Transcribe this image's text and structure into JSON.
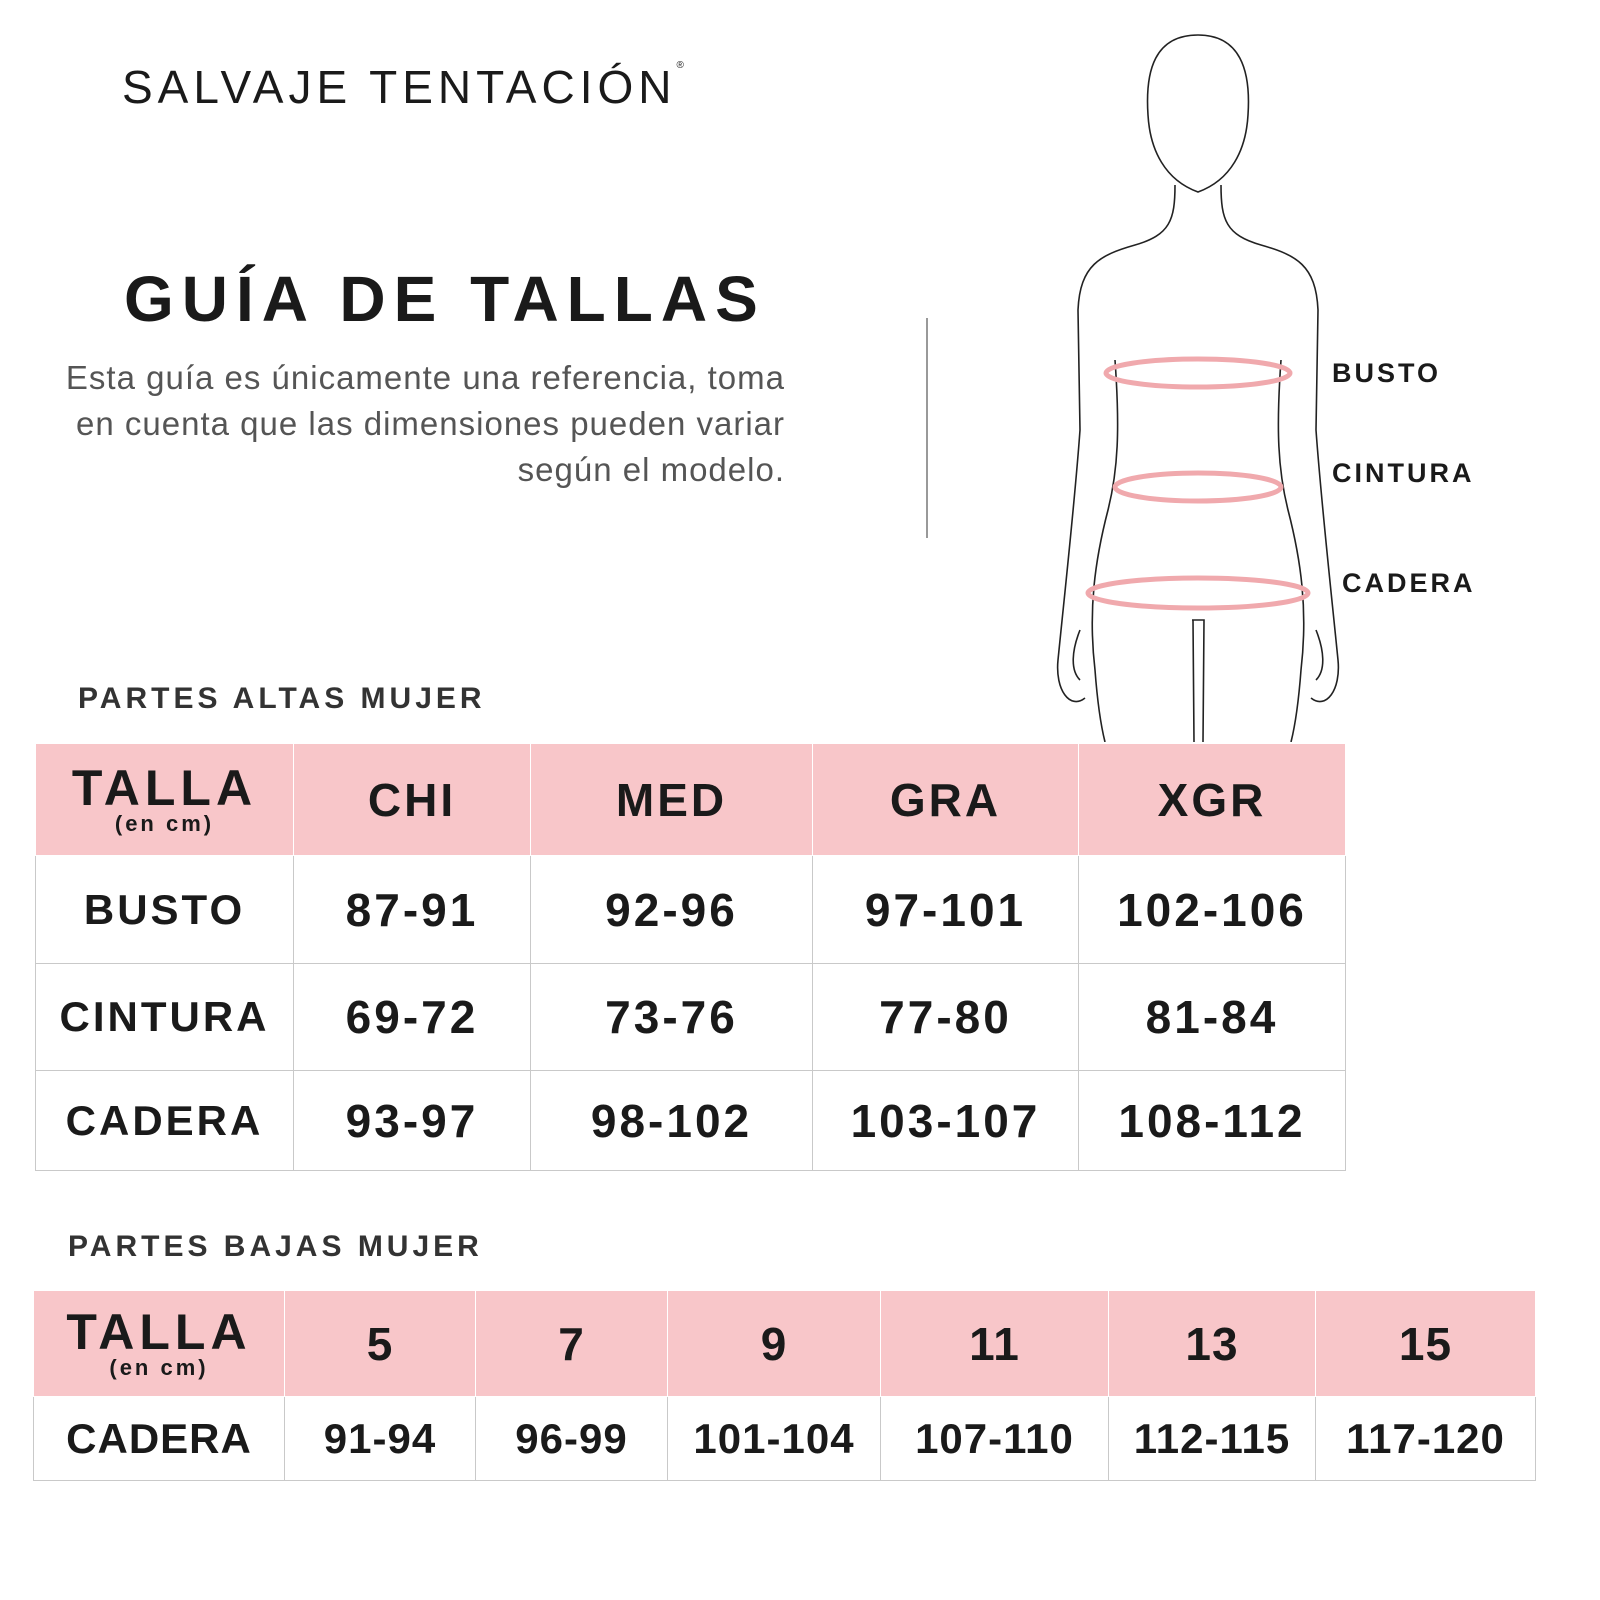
{
  "brand": {
    "name": "SALVAJE TENTACIÓN",
    "mark": "®"
  },
  "title": "GUÍA DE TALLAS",
  "description": "Esta guía es únicamente una referencia, toma en cuenta que las dimensiones pueden variar según el modelo.",
  "figure": {
    "labels": [
      "BUSTO",
      "CINTURA",
      "CADERA"
    ],
    "measure_color": "#f0a9ad"
  },
  "header_color": "#f8c6c9",
  "upper": {
    "section": "PARTES ALTAS MUJER",
    "talla": "TALLA",
    "unit": "(en cm)",
    "sizes": [
      "CHI",
      "MED",
      "GRA",
      "XGR"
    ],
    "rows": [
      {
        "label": "BUSTO",
        "values": [
          "87-91",
          "92-96",
          "97-101",
          "102-106"
        ]
      },
      {
        "label": "CINTURA",
        "values": [
          "69-72",
          "73-76",
          "77-80",
          "81-84"
        ]
      },
      {
        "label": "CADERA",
        "values": [
          "93-97",
          "98-102",
          "103-107",
          "108-112"
        ]
      }
    ]
  },
  "lower": {
    "section": "PARTES BAJAS MUJER",
    "talla": "TALLA",
    "unit": "(en cm)",
    "sizes": [
      "5",
      "7",
      "9",
      "11",
      "13",
      "15"
    ],
    "rows": [
      {
        "label": "CADERA",
        "values": [
          "91-94",
          "96-99",
          "101-104",
          "107-110",
          "112-115",
          "117-120"
        ]
      }
    ]
  }
}
